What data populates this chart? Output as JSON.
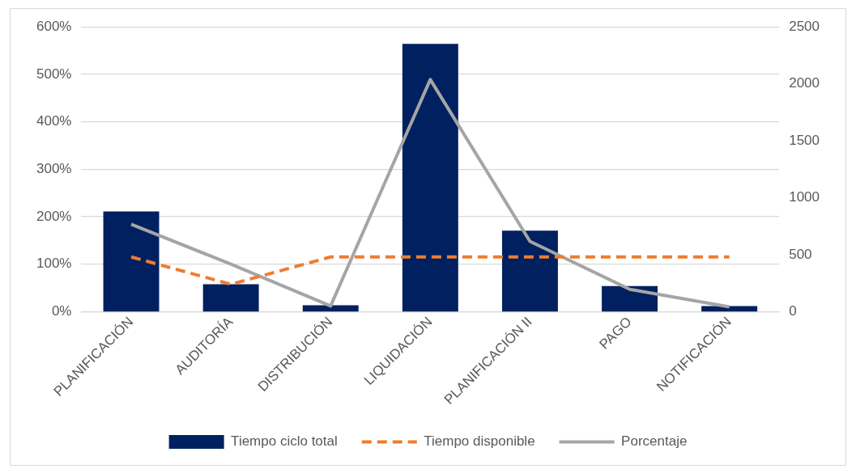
{
  "chart_data": {
    "type": "bar",
    "categories": [
      "PLANIFICACIÓN",
      "AUDITORÍA",
      "DISTRIBUCIÓN",
      "LIQUIDACIÓN",
      "PLANIFICACIÓN II",
      "PAGO",
      "NOTIFICACIÓN"
    ],
    "series": [
      {
        "name": "Tiempo ciclo total",
        "axis": "y2",
        "color": "#002060",
        "values": [
          880,
          240,
          56,
          2350,
          710,
          224,
          48
        ]
      },
      {
        "name": "Tiempo disponible",
        "type": "line",
        "axis": "y2",
        "color": "#ed7d31",
        "line_style": "dashed",
        "values": [
          480,
          240,
          480,
          480,
          480,
          480,
          480
        ]
      },
      {
        "name": "Porcentaje",
        "type": "line",
        "axis": "y",
        "color": "#a5a5a5",
        "line_style": "solid",
        "values": [
          184,
          100,
          12,
          489,
          148,
          47,
          10
        ]
      }
    ],
    "ylim": [
      0,
      600
    ],
    "yticks": [
      {
        "value": 0,
        "label": "0%"
      },
      {
        "value": 100,
        "label": "100%"
      },
      {
        "value": 200,
        "label": "200%"
      },
      {
        "value": 300,
        "label": "300%"
      },
      {
        "value": 400,
        "label": "400%"
      },
      {
        "value": 500,
        "label": "500%"
      },
      {
        "value": 600,
        "label": "600%"
      }
    ],
    "y2lim": [
      0,
      2500
    ],
    "y2ticks": [
      0,
      500,
      1000,
      1500,
      2000,
      2500
    ],
    "grid": "y",
    "legend": "bottom",
    "marker": "none"
  }
}
